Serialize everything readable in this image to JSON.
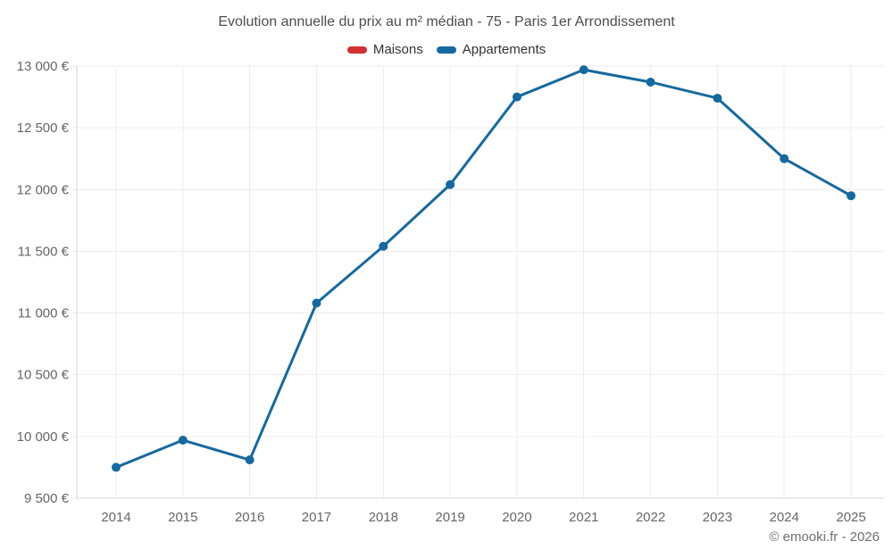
{
  "header": {
    "title": "Evolution annuelle du prix au m² médian - 75 - Paris 1er Arrondissement"
  },
  "legend": [
    {
      "label": "Maisons",
      "color": "#d32f2f"
    },
    {
      "label": "Appartements",
      "color": "#1569a0"
    }
  ],
  "footer": {
    "credit": "© emooki.fr - 2026"
  },
  "chart_data": {
    "type": "line",
    "title": "Evolution annuelle du prix au m² médian - 75 - Paris 1er Arrondissement",
    "categories": [
      "2014",
      "2015",
      "2016",
      "2017",
      "2018",
      "2019",
      "2020",
      "2021",
      "2022",
      "2023",
      "2024",
      "2025"
    ],
    "series": [
      {
        "name": "Maisons",
        "color": "#d32f2f",
        "values": []
      },
      {
        "name": "Appartements",
        "color": "#1569a0",
        "values": [
          9750,
          9970,
          9810,
          11080,
          11540,
          12040,
          12750,
          12970,
          12870,
          12740,
          12250,
          11950
        ]
      }
    ],
    "xlabel": "",
    "ylabel": "",
    "ylim": [
      9500,
      13000
    ],
    "ytick_step": 500,
    "yticks": [
      {
        "value": 13000,
        "label": "13 000 €"
      },
      {
        "value": 12500,
        "label": "12 500 €"
      },
      {
        "value": 12000,
        "label": "12 000 €"
      },
      {
        "value": 11500,
        "label": "11 500 €"
      },
      {
        "value": 11000,
        "label": "11 000 €"
      },
      {
        "value": 10500,
        "label": "10 500 €"
      },
      {
        "value": 10000,
        "label": "10 000 €"
      },
      {
        "value": 9500,
        "label": "9 500 €"
      }
    ],
    "grid": true,
    "legend_position": "top",
    "currency_suffix": "€"
  }
}
